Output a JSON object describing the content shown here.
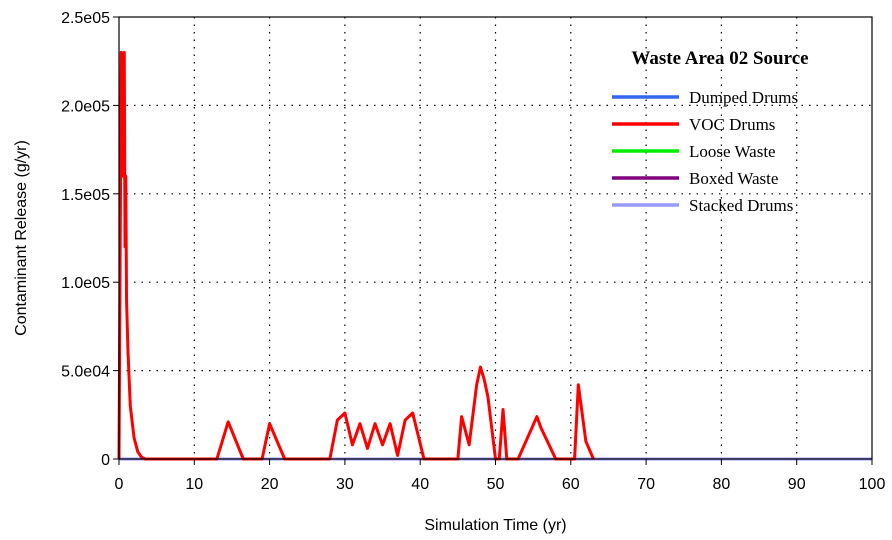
{
  "chart_data": {
    "type": "line",
    "xlabel": "Simulation Time (yr)",
    "ylabel": "Contaminant Release (g/yr)",
    "xlim": [
      0,
      100
    ],
    "ylim": [
      0,
      250000
    ],
    "x_ticks": [
      0,
      10,
      20,
      30,
      40,
      50,
      60,
      70,
      80,
      90,
      100
    ],
    "x_tick_labels": [
      "0",
      "10",
      "20",
      "30",
      "40",
      "50",
      "60",
      "70",
      "80",
      "90",
      "100"
    ],
    "y_ticks": [
      0,
      50000,
      100000,
      150000,
      200000,
      250000
    ],
    "y_tick_labels": [
      "0",
      "5.0e04",
      "1.0e05",
      "1.5e05",
      "2.0e05",
      "2.5e05"
    ],
    "grid": "dotted",
    "legend": {
      "title": "Waste Area 02 Source",
      "placement": "top-right"
    },
    "series": [
      {
        "name": "Dumped Drums",
        "color": "#3366ee",
        "x": [
          0,
          100
        ],
        "y": [
          0,
          0
        ]
      },
      {
        "name": "VOC Drums",
        "color": "#ff0000",
        "x": [
          0,
          0.3,
          0.5,
          0.7,
          0.8,
          0.9,
          1.0,
          1.2,
          1.5,
          2.0,
          2.5,
          3.0,
          3.5,
          4.0,
          13.0,
          14.5,
          16.5,
          19.0,
          20.0,
          22.0,
          28.0,
          29.0,
          30.0,
          31.0,
          32.0,
          33.0,
          34.0,
          35.0,
          36.0,
          37.0,
          38.0,
          39.0,
          40.5,
          45.0,
          45.5,
          46.5,
          47.5,
          48.0,
          48.5,
          49.0,
          50.0,
          50.5,
          51.0,
          51.5,
          52.5,
          53.0,
          55.5,
          56.0,
          58.0,
          60.5,
          61.0,
          62.0,
          63.0
        ],
        "y": [
          0,
          230000,
          160000,
          230000,
          120000,
          160000,
          90000,
          60000,
          30000,
          12000,
          4000,
          1000,
          0,
          0,
          0,
          21000,
          0,
          0,
          20000,
          0,
          0,
          22000,
          26000,
          8000,
          20000,
          6000,
          20000,
          8000,
          20000,
          2000,
          22000,
          26000,
          0,
          0,
          24000,
          8000,
          42000,
          52000,
          45000,
          35000,
          0,
          0,
          28000,
          0,
          0,
          0,
          24000,
          18000,
          0,
          0,
          42000,
          10000,
          0
        ]
      },
      {
        "name": "Loose Waste",
        "color": "#00ee00",
        "x": [
          0,
          100
        ],
        "y": [
          0,
          0
        ]
      },
      {
        "name": "Boxed Waste",
        "color": "#800080",
        "x": [
          0,
          100
        ],
        "y": [
          0,
          0
        ]
      },
      {
        "name": "Stacked Drums",
        "color": "#9999ff",
        "x": [
          0,
          100
        ],
        "y": [
          0,
          0
        ]
      }
    ]
  }
}
